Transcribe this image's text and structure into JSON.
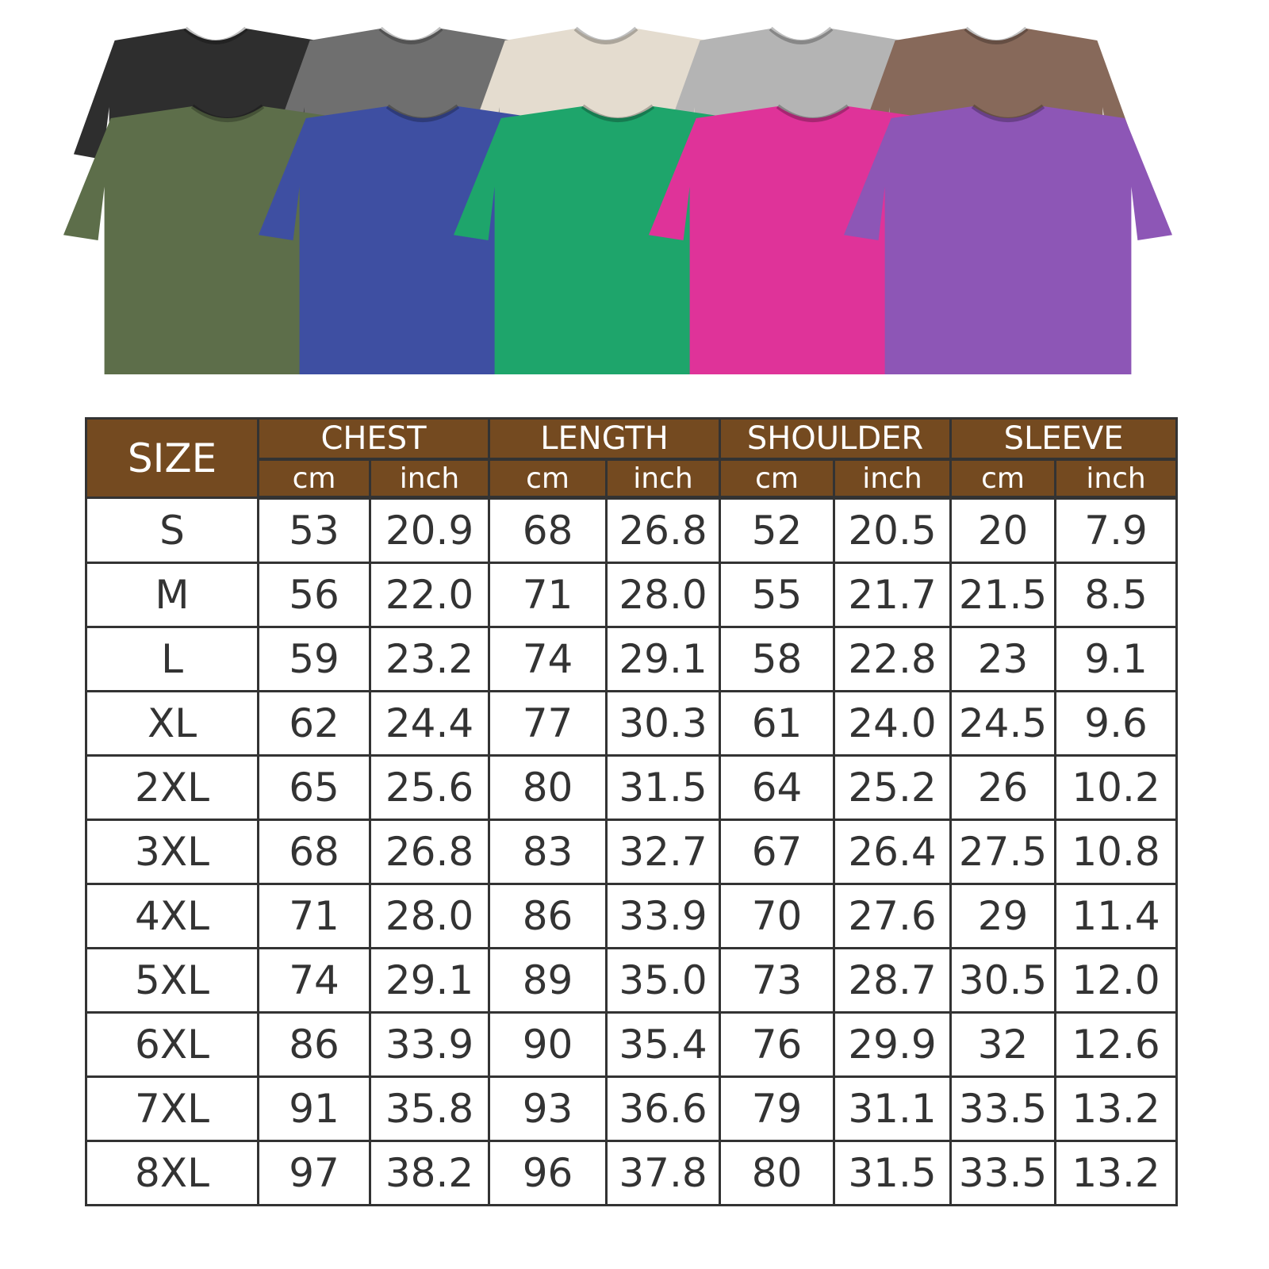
{
  "shirt_colors": {
    "back_row": [
      "#2e2e2e",
      "#6f6f6f",
      "#e4dccf",
      "#b4b4b4",
      "#87695a"
    ],
    "front_row": [
      "#5d6e4a",
      "#3e4fa2",
      "#1ea56b",
      "#df3399",
      "#8d56b6"
    ]
  },
  "colors": {
    "header_bg": "#744a20",
    "header_text": "#ffffff",
    "grid": "#333333"
  },
  "table": {
    "size_header": "SIZE",
    "groups": [
      "CHEST",
      "LENGTH",
      "SHOULDER",
      "SLEEVE"
    ],
    "units": [
      "cm",
      "inch",
      "cm",
      "inch",
      "cm",
      "inch",
      "cm",
      "inch"
    ],
    "rows": [
      [
        "S",
        "53",
        "20.9",
        "68",
        "26.8",
        "52",
        "20.5",
        "20",
        "7.9"
      ],
      [
        "M",
        "56",
        "22.0",
        "71",
        "28.0",
        "55",
        "21.7",
        "21.5",
        "8.5"
      ],
      [
        "L",
        "59",
        "23.2",
        "74",
        "29.1",
        "58",
        "22.8",
        "23",
        "9.1"
      ],
      [
        "XL",
        "62",
        "24.4",
        "77",
        "30.3",
        "61",
        "24.0",
        "24.5",
        "9.6"
      ],
      [
        "2XL",
        "65",
        "25.6",
        "80",
        "31.5",
        "64",
        "25.2",
        "26",
        "10.2"
      ],
      [
        "3XL",
        "68",
        "26.8",
        "83",
        "32.7",
        "67",
        "26.4",
        "27.5",
        "10.8"
      ],
      [
        "4XL",
        "71",
        "28.0",
        "86",
        "33.9",
        "70",
        "27.6",
        "29",
        "11.4"
      ],
      [
        "5XL",
        "74",
        "29.1",
        "89",
        "35.0",
        "73",
        "28.7",
        "30.5",
        "12.0"
      ],
      [
        "6XL",
        "86",
        "33.9",
        "90",
        "35.4",
        "76",
        "29.9",
        "32",
        "12.6"
      ],
      [
        "7XL",
        "91",
        "35.8",
        "93",
        "36.6",
        "79",
        "31.1",
        "33.5",
        "13.2"
      ],
      [
        "8XL",
        "97",
        "38.2",
        "96",
        "37.8",
        "80",
        "31.5",
        "33.5",
        "13.2"
      ]
    ]
  }
}
